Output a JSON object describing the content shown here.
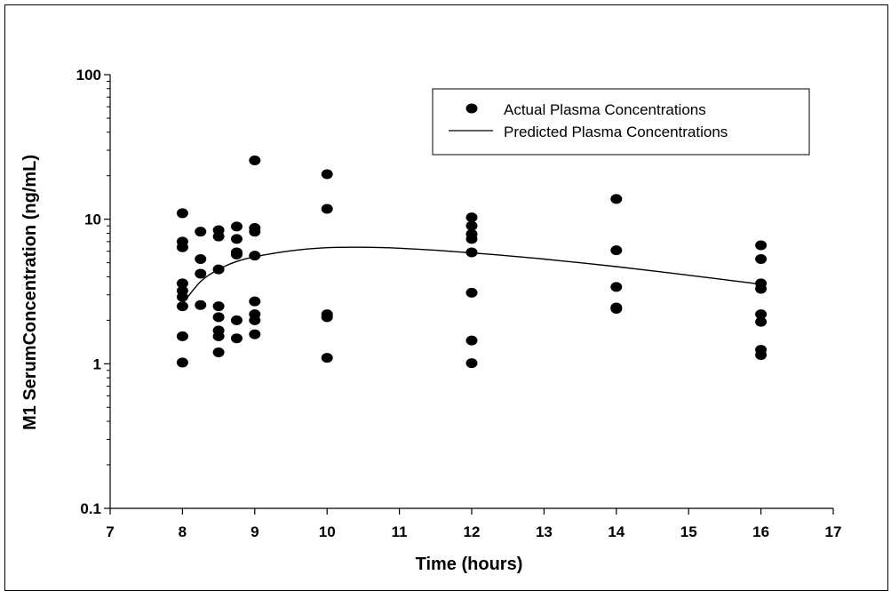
{
  "chart_data": {
    "type": "scatter",
    "title": "",
    "xlabel": "Time (hours)",
    "ylabel": "M1 SerumConcentration (ng/mL)",
    "xlim": [
      7,
      17
    ],
    "xticks": [
      "7",
      "8",
      "9",
      "10",
      "11",
      "12",
      "13",
      "14",
      "15",
      "16",
      "17"
    ],
    "ylim": [
      0.1,
      100
    ],
    "yscale": "log",
    "yticks": [
      "0.1",
      "1",
      "10",
      "100"
    ],
    "grid": false,
    "legend_position": "top-right",
    "series": [
      {
        "name": "Actual Plasma Concentrations",
        "kind": "scatter",
        "color": "#000000",
        "points": [
          [
            8,
            11.0
          ],
          [
            8,
            7.0
          ],
          [
            8,
            6.4
          ],
          [
            8,
            3.6
          ],
          [
            8,
            3.2
          ],
          [
            8,
            2.9
          ],
          [
            8,
            2.5
          ],
          [
            8,
            1.55
          ],
          [
            8,
            1.02
          ],
          [
            8.25,
            8.2
          ],
          [
            8.25,
            5.3
          ],
          [
            8.25,
            4.2
          ],
          [
            8.25,
            2.55
          ],
          [
            8.5,
            8.4
          ],
          [
            8.5,
            7.6
          ],
          [
            8.5,
            4.5
          ],
          [
            8.5,
            2.5
          ],
          [
            8.5,
            2.1
          ],
          [
            8.5,
            1.7
          ],
          [
            8.5,
            1.55
          ],
          [
            8.5,
            1.2
          ],
          [
            8.75,
            8.9
          ],
          [
            8.75,
            7.3
          ],
          [
            8.75,
            5.9
          ],
          [
            8.75,
            5.7
          ],
          [
            8.75,
            2.0
          ],
          [
            8.75,
            1.5
          ],
          [
            9,
            25.5
          ],
          [
            9,
            8.7
          ],
          [
            9,
            8.2
          ],
          [
            9,
            5.6
          ],
          [
            9,
            2.7
          ],
          [
            9,
            2.2
          ],
          [
            9,
            2.0
          ],
          [
            9,
            1.6
          ],
          [
            10,
            20.5
          ],
          [
            10,
            11.8
          ],
          [
            10,
            2.2
          ],
          [
            10,
            2.1
          ],
          [
            10,
            1.1
          ],
          [
            12,
            10.3
          ],
          [
            12,
            9.0
          ],
          [
            12,
            7.9
          ],
          [
            12,
            7.3
          ],
          [
            12,
            5.9
          ],
          [
            12,
            3.1
          ],
          [
            12,
            1.45
          ],
          [
            12,
            1.01
          ],
          [
            14,
            13.8
          ],
          [
            14,
            6.1
          ],
          [
            14,
            3.4
          ],
          [
            14,
            2.45
          ],
          [
            14,
            2.4
          ],
          [
            16,
            6.6
          ],
          [
            16,
            5.3
          ],
          [
            16,
            3.6
          ],
          [
            16,
            3.3
          ],
          [
            16,
            2.2
          ],
          [
            16,
            1.95
          ],
          [
            16,
            1.25
          ],
          [
            16,
            1.15
          ]
        ]
      },
      {
        "name": "Predicted Plasma Concentrations",
        "kind": "line",
        "color": "#000000",
        "points": [
          [
            8,
            2.6
          ],
          [
            8.25,
            3.7
          ],
          [
            8.5,
            4.5
          ],
          [
            8.75,
            5.1
          ],
          [
            9,
            5.5
          ],
          [
            9.5,
            6.05
          ],
          [
            10,
            6.35
          ],
          [
            10.5,
            6.4
          ],
          [
            11,
            6.3
          ],
          [
            11.5,
            6.1
          ],
          [
            12,
            5.85
          ],
          [
            13,
            5.3
          ],
          [
            14,
            4.7
          ],
          [
            15,
            4.1
          ],
          [
            16,
            3.55
          ]
        ]
      }
    ]
  }
}
